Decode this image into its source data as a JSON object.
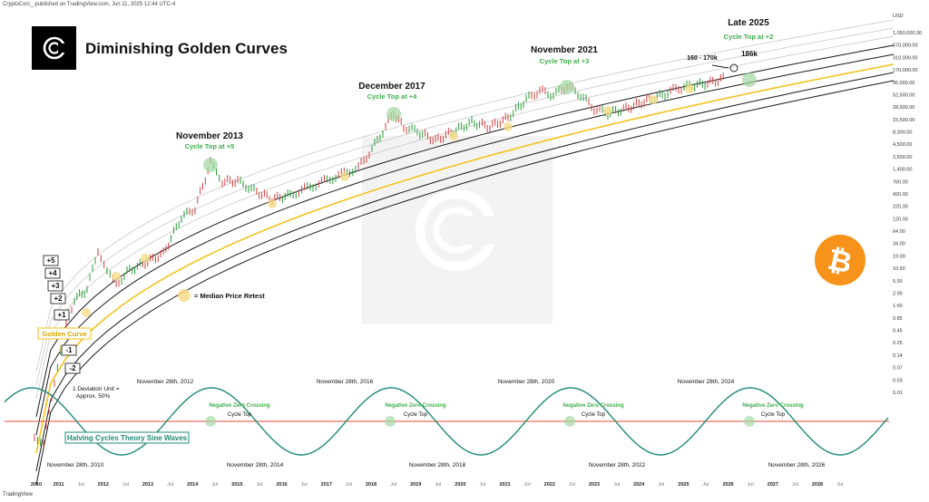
{
  "header": {
    "publisher": "CryptoCorc_ published on TradingView.com, Jun 11, 2025 12:44 UTC-4"
  },
  "footer": {
    "brand": "TradingView"
  },
  "title": "Diminishing Golden Curves",
  "colors": {
    "golden": "#f2c21b",
    "band_dark": "#1a1a1a",
    "band_light": "#c8c8c8",
    "sine": "#1f8a78",
    "zero_line": "#e04a3c",
    "callout_green": "#3fae4a",
    "btc": "#f7931a",
    "candle_up": "#2a9a3a",
    "candle_down": "#d04040"
  },
  "icons": {
    "logo": "cc-monogram-icon",
    "bitcoin": "bitcoin-icon",
    "watermark": "cc-watermark-icon"
  },
  "legend": {
    "median_retest": "= Median Price Retest"
  },
  "deviation_note": [
    "1 Deviation Unit =",
    "Approx. 50%"
  ],
  "golden_curve_label": "Golden Curve",
  "sine_label": "Halving Cycles Theory Sine Waves",
  "chart_data": {
    "type": "line",
    "title": "Diminishing Golden Curves",
    "y_scale": "log",
    "y_axis_unit": "USD",
    "y_ticks": [
      "1,050,000.00",
      "570,000.00",
      "310,000.00",
      "170,000.00",
      "95,000.00",
      "52,500.00",
      "28,500.00",
      "15,500.00",
      "8,300.00",
      "4,500.00",
      "2,500.00",
      "1,400.00",
      "760.00",
      "420.00",
      "220.00",
      "120.00",
      "64.00",
      "34.00",
      "19.00",
      "10.50",
      "5.50",
      "2.90",
      "1.60",
      "0.85",
      "0.45",
      "0.25",
      "0.14",
      "0.07",
      "0.03",
      "0.01"
    ],
    "x_ticks": [
      "2010",
      "2011",
      "Jul",
      "2012",
      "Jul",
      "2013",
      "Jul",
      "2014",
      "Jul",
      "2015",
      "Jul",
      "2016",
      "Jul",
      "2017",
      "Jul",
      "2018",
      "Jul",
      "2019",
      "Jul",
      "2020",
      "Jul",
      "2021",
      "Jul",
      "2022",
      "Jul",
      "2023",
      "Jul",
      "2024",
      "Jul",
      "2025",
      "Jul",
      "2026",
      "Jul",
      "2027",
      "Jul",
      "2028",
      "Jul"
    ],
    "bands": [
      "+5",
      "+4",
      "+3",
      "+2",
      "+1",
      "-1",
      "-2"
    ],
    "cycle_tops": [
      {
        "date": "November 2013",
        "label": "Cycle Top at +5"
      },
      {
        "date": "December 2017",
        "label": "Cycle Top at +4"
      },
      {
        "date": "November 2021",
        "label": "Cycle Top at +3"
      },
      {
        "date": "Late 2025",
        "label": "Cycle Top at +2",
        "target": "186k"
      }
    ],
    "current_range_label": "160 - 170k",
    "sine_peaks": [
      "November 28th, 2012",
      "November 28th, 2016",
      "November 28th, 2020",
      "November 28th, 2024"
    ],
    "sine_troughs": [
      "November 28th, 2010",
      "November 28th, 2014",
      "November 28th, 2018",
      "November 28th, 2022",
      "November 28th, 2026"
    ],
    "zero_crossings": [
      {
        "label": "Negative Zero Crossing",
        "sub": "Cycle Top"
      },
      {
        "label": "Negative Zero Crossing",
        "sub": "Cycle Top"
      },
      {
        "label": "Negative Zero Crossing",
        "sub": "Cycle Top"
      },
      {
        "label": "Negative Zero Crossing",
        "sub": "Cycle Top"
      }
    ]
  }
}
